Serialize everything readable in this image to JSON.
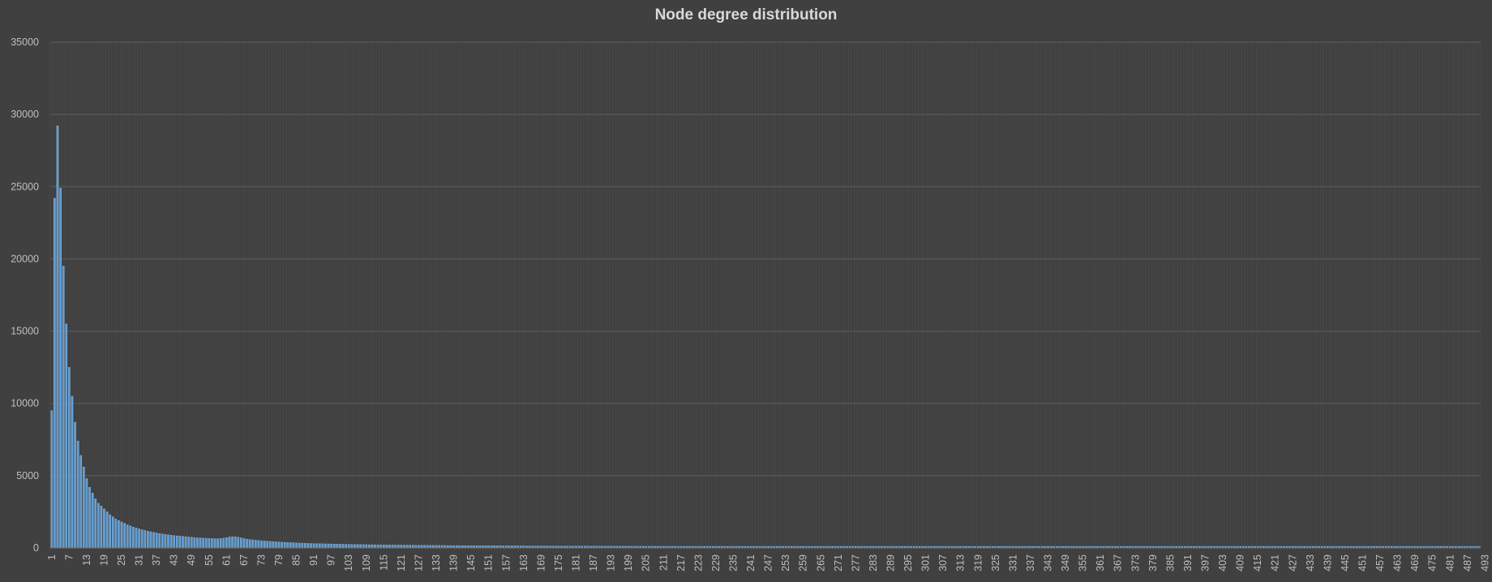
{
  "chart_data": {
    "type": "bar",
    "title": "Node degree distribution",
    "xlabel": "",
    "ylabel": "",
    "x_start": 1,
    "x_end": 500,
    "x_tick_every": 6,
    "ylim": [
      0,
      35000
    ],
    "yticks": [
      0,
      5000,
      10000,
      15000,
      20000,
      25000,
      30000,
      35000
    ],
    "grid": true,
    "legend": "none",
    "values": [
      9500,
      24200,
      29200,
      24900,
      19500,
      15500,
      12500,
      10500,
      8700,
      7400,
      6400,
      5600,
      4800,
      4200,
      3800,
      3400,
      3100,
      2900,
      2700,
      2500,
      2300,
      2150,
      2000,
      1900,
      1800,
      1700,
      1600,
      1520,
      1450,
      1380,
      1320,
      1260,
      1210,
      1160,
      1120,
      1080,
      1040,
      1000,
      970,
      940,
      910,
      880,
      860,
      840,
      820,
      800,
      780,
      760,
      740,
      720,
      700,
      690,
      680,
      670,
      660,
      650,
      640,
      640,
      650,
      680,
      720,
      760,
      780,
      770,
      740,
      700,
      650,
      610,
      580,
      560,
      540,
      520,
      500,
      485,
      470,
      455,
      440,
      425,
      410,
      400,
      390,
      380,
      370,
      360,
      350,
      340,
      330,
      320,
      315,
      310,
      305,
      300,
      295,
      290,
      285,
      280,
      275,
      270,
      265,
      260,
      256,
      252,
      248,
      244,
      240,
      237,
      234,
      231,
      228,
      225,
      222,
      219,
      216,
      213,
      210,
      208,
      206,
      204,
      202,
      200,
      198,
      196,
      194,
      192,
      190,
      188,
      186,
      184,
      182,
      180,
      178,
      176,
      174,
      172,
      170,
      168,
      166,
      165,
      164,
      163,
      162,
      161,
      160,
      159,
      158,
      157,
      156,
      155,
      154,
      153,
      152,
      151,
      150,
      149,
      148,
      147,
      146,
      145,
      144,
      143,
      142,
      141,
      140,
      139,
      138,
      137,
      136,
      135,
      134,
      133,
      132,
      131,
      130,
      129,
      128,
      128,
      127,
      127,
      126,
      126,
      125,
      125,
      124,
      124,
      123,
      123,
      122,
      122,
      121,
      121,
      120,
      120,
      120,
      119,
      119,
      119,
      118,
      118,
      118,
      117,
      117,
      117,
      116,
      116,
      116,
      115,
      115,
      115,
      114,
      114,
      114,
      113,
      113,
      113,
      112,
      112,
      112,
      111,
      111,
      111,
      110,
      110,
      110,
      110,
      110,
      110,
      110,
      110,
      110,
      110,
      110,
      110,
      110,
      110,
      110,
      110,
      110,
      110,
      110,
      110,
      110,
      110,
      110,
      110,
      110,
      110,
      110,
      110,
      110,
      110,
      110,
      110,
      110,
      110,
      110,
      110,
      110,
      110,
      110,
      110,
      110,
      110,
      110,
      110,
      110,
      110,
      110,
      110,
      110,
      110,
      110,
      110,
      110,
      110,
      110,
      110,
      110,
      110,
      110,
      110,
      110,
      110,
      110,
      110,
      110,
      110,
      110,
      110,
      110,
      110,
      110,
      110,
      110,
      110,
      110,
      110,
      110,
      110,
      110,
      110,
      110,
      110,
      110,
      110,
      110,
      110,
      110,
      110,
      110,
      110,
      110,
      110,
      110,
      110,
      110,
      110,
      110,
      110,
      110,
      110,
      110,
      110,
      110,
      110,
      110,
      110,
      110,
      110,
      110,
      110,
      110,
      110,
      110,
      110,
      110,
      110,
      110,
      110,
      110,
      110,
      110,
      110,
      110,
      110,
      110,
      110,
      110,
      110,
      110,
      110,
      110,
      110,
      110,
      110,
      110,
      110,
      110,
      110,
      110,
      110,
      110,
      110,
      110,
      110,
      110,
      110,
      110,
      110,
      110,
      110,
      110,
      110,
      110,
      110,
      110,
      110,
      110,
      110,
      110,
      110,
      110,
      110,
      110,
      110,
      110,
      110,
      110,
      110,
      110,
      110,
      110,
      110,
      110,
      110,
      110,
      110,
      110,
      110,
      110,
      110,
      110,
      110,
      110,
      110,
      110,
      110,
      110,
      110,
      110,
      110,
      110,
      110,
      110,
      110,
      110,
      110,
      110,
      110,
      110,
      110,
      110,
      110,
      110,
      110,
      110,
      110,
      110,
      110,
      110,
      110,
      110,
      110,
      110,
      110,
      110,
      110,
      110,
      110,
      110,
      110,
      110,
      110,
      110,
      110,
      110,
      110,
      110,
      110,
      110,
      110,
      110,
      110,
      110,
      110,
      110,
      110,
      110,
      110,
      110,
      110,
      110,
      110,
      110,
      110,
      110,
      110,
      110,
      110,
      110,
      110,
      110,
      110,
      110,
      110,
      110,
      110,
      110,
      110,
      110,
      110,
      110,
      110,
      110,
      110,
      110,
      110,
      110,
      110,
      110,
      110,
      110
    ],
    "colors": {
      "background": "#404040",
      "bar_fill": "#5b9bd5",
      "bar_edge": "#8fc4f0",
      "grid": "#5a5a5a",
      "text": "#bfbfbf",
      "title": "#d9d9d9"
    }
  }
}
